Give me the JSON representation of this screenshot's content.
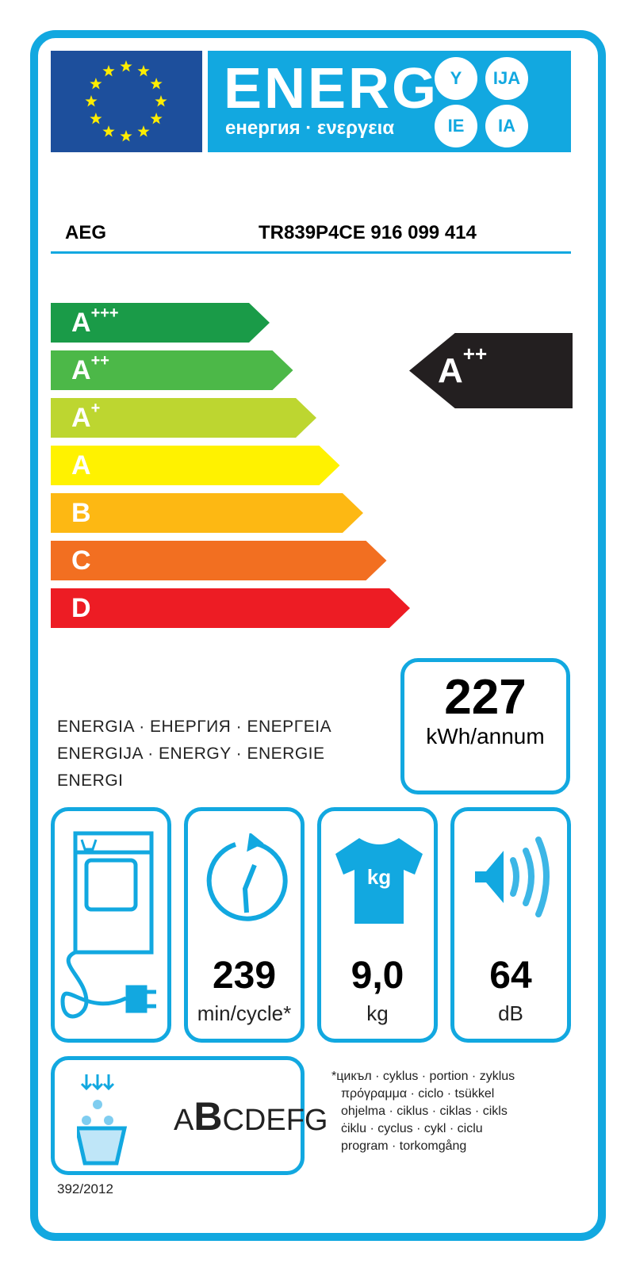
{
  "header": {
    "title": "ENERG",
    "subtitle": "енергия · ενεργεια",
    "suffixes": [
      "Y",
      "IJA",
      "IE",
      "IA"
    ]
  },
  "supplier": {
    "brand": "AEG",
    "model": "TR839P4CE  916 099 414"
  },
  "scale": {
    "classes": [
      {
        "label": "A",
        "sup": "+++",
        "color": "#1a9b48"
      },
      {
        "label": "A",
        "sup": "++",
        "color": "#4cb848"
      },
      {
        "label": "A",
        "sup": "+",
        "color": "#bdd630"
      },
      {
        "label": "A",
        "sup": "",
        "color": "#fff200"
      },
      {
        "label": "B",
        "sup": "",
        "color": "#fdb813"
      },
      {
        "label": "C",
        "sup": "",
        "color": "#f26f21"
      },
      {
        "label": "D",
        "sup": "",
        "color": "#ed1c24"
      }
    ]
  },
  "rating": {
    "label": "A",
    "sup": "++",
    "color": "#231f20"
  },
  "energy": {
    "value": "227",
    "unit": "kWh/annum",
    "label_lines": [
      "ENERGIA · ЕНЕРГИЯ · ΕΝΕΡΓΕΙΑ",
      "ENERGIJA · ENERGY · ENERGIE",
      "ENERGI"
    ]
  },
  "specs": {
    "type_icon": "plug-in-dryer-icon",
    "cycle": {
      "icon": "clock-icon",
      "value": "239",
      "unit": "min/cycle*"
    },
    "capacity": {
      "icon": "tshirt-kg-icon",
      "value": "9,0",
      "unit": "kg",
      "icon_text": "kg"
    },
    "noise": {
      "icon": "speaker-icon",
      "value": "64",
      "unit": "dB"
    }
  },
  "condensation": {
    "icon": "water-drops-icon",
    "scale_first": "A",
    "scale_selected": "B",
    "scale_rest": "CDEFG"
  },
  "footnote": [
    "*цикъл · cyklus · portion · zyklus",
    "πρόγραμμα · ciclo · tsükkel",
    "ohjelma · ciklus · ciklas · cikls",
    "ċiklu · cyclus · cykl · ciclu",
    "program · torkomgång"
  ],
  "regulation": "392/2012",
  "colors": {
    "accent": "#12a8e0",
    "eu_blue": "#1d4f9c"
  }
}
